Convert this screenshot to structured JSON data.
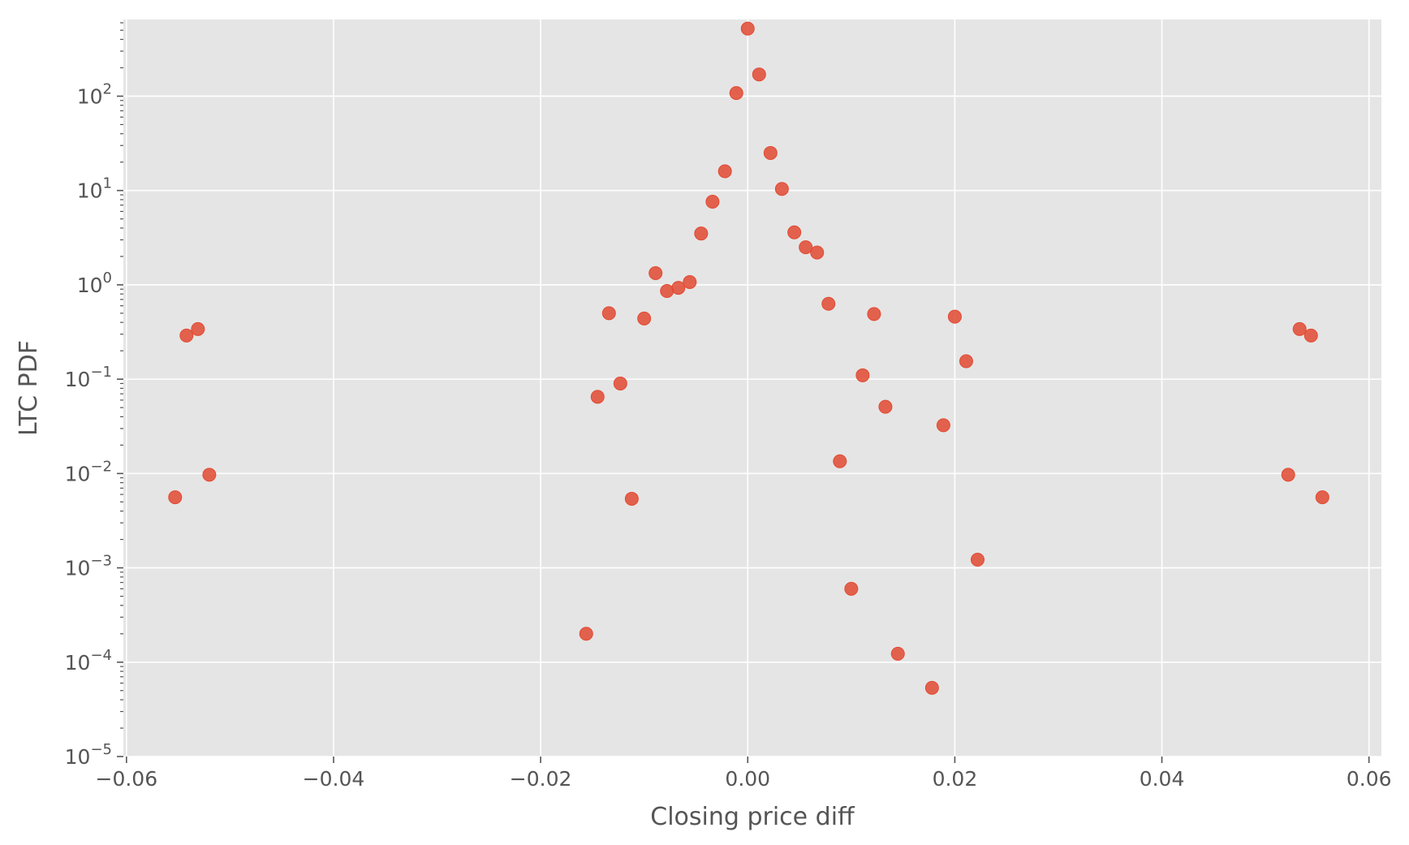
{
  "chart_data": {
    "type": "scatter",
    "title": "",
    "xlabel": "Closing price diff",
    "ylabel": "LTC PDF",
    "xlim": [
      -0.0603,
      0.0612
    ],
    "ylim": [
      1e-05,
      650
    ],
    "yscale": "log",
    "x_ticks": [
      -0.06,
      -0.04,
      -0.02,
      0.0,
      0.02,
      0.04,
      0.06
    ],
    "x_tick_labels": [
      "−0.06",
      "−0.04",
      "−0.02",
      "0.00",
      "0.02",
      "0.04",
      "0.06"
    ],
    "y_ticks": [
      {
        "value": 1e-05,
        "base": "10",
        "exp": "−5"
      },
      {
        "value": 0.0001,
        "base": "10",
        "exp": "−4"
      },
      {
        "value": 0.001,
        "base": "10",
        "exp": "−3"
      },
      {
        "value": 0.01,
        "base": "10",
        "exp": "−2"
      },
      {
        "value": 0.1,
        "base": "10",
        "exp": "−1"
      },
      {
        "value": 1,
        "base": "10",
        "exp": "0"
      },
      {
        "value": 10,
        "base": "10",
        "exp": "1"
      },
      {
        "value": 100,
        "base": "10",
        "exp": "2"
      }
    ],
    "grid": true,
    "colors": {
      "point": "#e24a33",
      "plot_background": "#e5e5e5",
      "grid": "#ffffff",
      "text": "#555555"
    },
    "points": [
      {
        "x": -0.0553,
        "y": 0.0056
      },
      {
        "x": -0.0542,
        "y": 0.29
      },
      {
        "x": -0.0531,
        "y": 0.34
      },
      {
        "x": -0.052,
        "y": 0.0097
      },
      {
        "x": -0.0156,
        "y": 0.0002
      },
      {
        "x": -0.0145,
        "y": 0.065
      },
      {
        "x": -0.0134,
        "y": 0.5
      },
      {
        "x": -0.0123,
        "y": 0.09
      },
      {
        "x": -0.0112,
        "y": 0.0054
      },
      {
        "x": -0.01,
        "y": 0.44
      },
      {
        "x": -0.0089,
        "y": 1.33
      },
      {
        "x": -0.0078,
        "y": 0.86
      },
      {
        "x": -0.0067,
        "y": 0.93
      },
      {
        "x": -0.0056,
        "y": 1.07
      },
      {
        "x": -0.0045,
        "y": 3.5
      },
      {
        "x": -0.0034,
        "y": 7.6
      },
      {
        "x": -0.0022,
        "y": 16.0
      },
      {
        "x": -0.0011,
        "y": 108
      },
      {
        "x": 0.0,
        "y": 520
      },
      {
        "x": 0.0011,
        "y": 170
      },
      {
        "x": 0.0022,
        "y": 25
      },
      {
        "x": 0.0033,
        "y": 10.4
      },
      {
        "x": 0.0045,
        "y": 3.6
      },
      {
        "x": 0.0056,
        "y": 2.5
      },
      {
        "x": 0.0067,
        "y": 2.2
      },
      {
        "x": 0.0078,
        "y": 0.63
      },
      {
        "x": 0.0089,
        "y": 0.0135
      },
      {
        "x": 0.01,
        "y": 0.0006
      },
      {
        "x": 0.0111,
        "y": 0.11
      },
      {
        "x": 0.0122,
        "y": 0.49
      },
      {
        "x": 0.0133,
        "y": 0.051
      },
      {
        "x": 0.0145,
        "y": 0.000123
      },
      {
        "x": 0.0178,
        "y": 5.35e-05
      },
      {
        "x": 0.0189,
        "y": 0.0325
      },
      {
        "x": 0.02,
        "y": 0.46
      },
      {
        "x": 0.0211,
        "y": 0.155
      },
      {
        "x": 0.0222,
        "y": 0.00122
      },
      {
        "x": 0.0522,
        "y": 0.0097
      },
      {
        "x": 0.0533,
        "y": 0.34
      },
      {
        "x": 0.0544,
        "y": 0.29
      },
      {
        "x": 0.0555,
        "y": 0.0056
      }
    ]
  }
}
